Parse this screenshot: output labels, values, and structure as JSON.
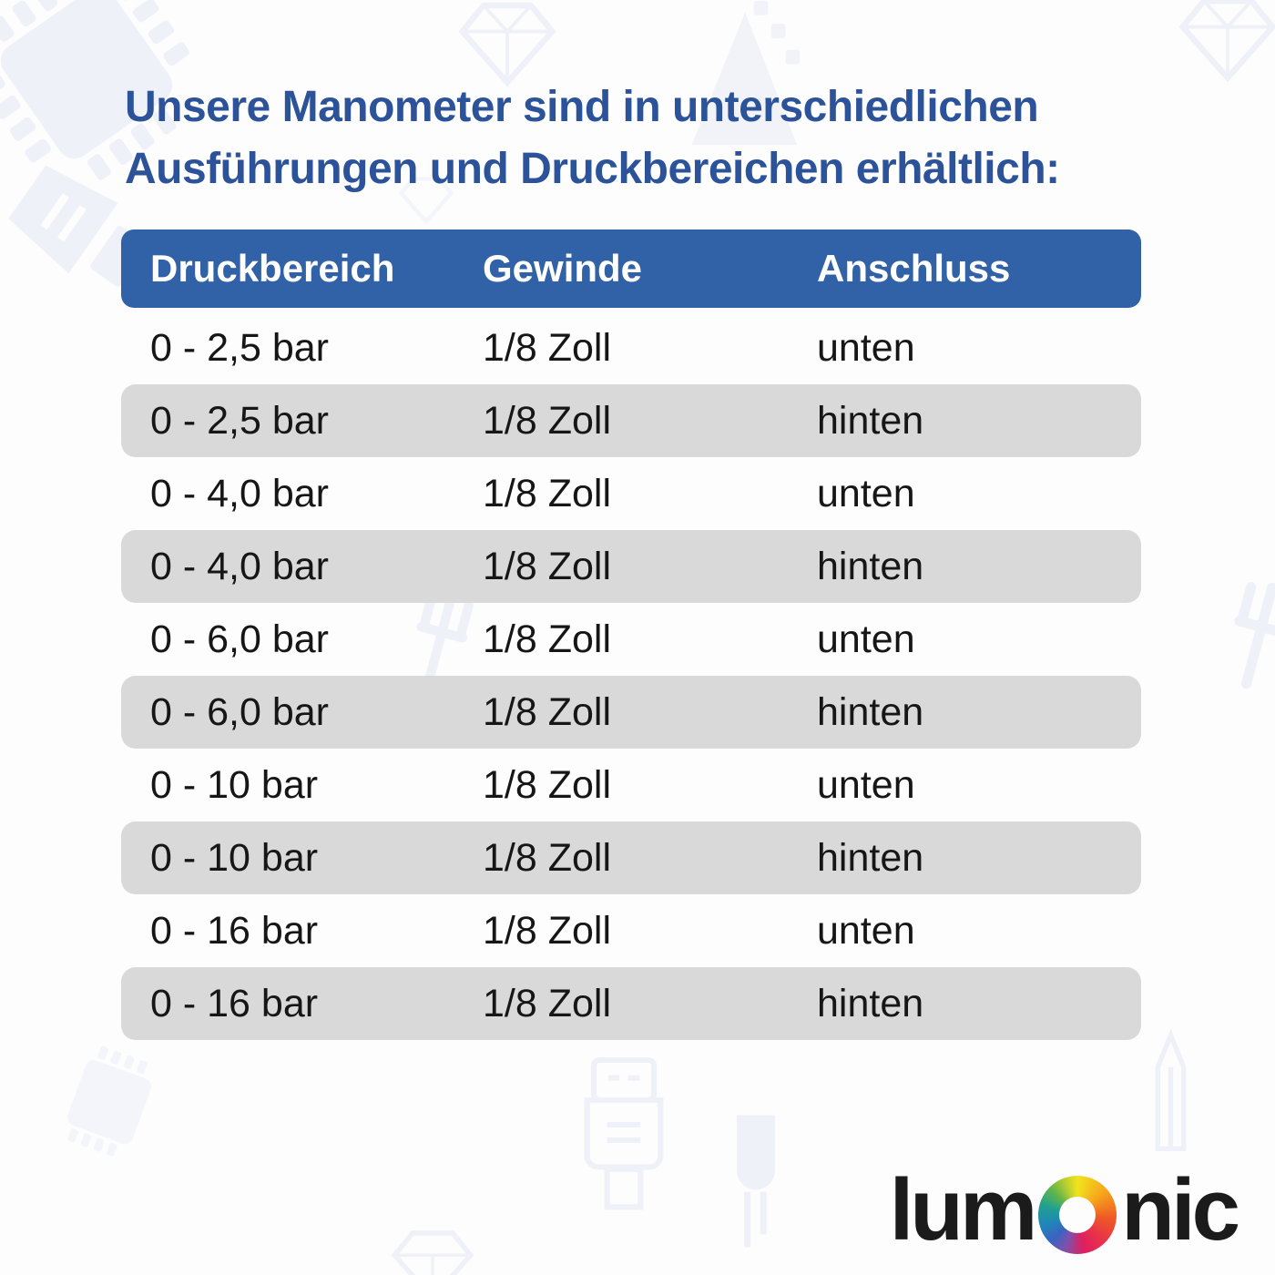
{
  "title": {
    "lines": [
      "Unsere Manometer sind in unterschiedlichen",
      "Ausführungen und Druckbereichen erhältlich:"
    ],
    "color": "#2c5399"
  },
  "table": {
    "headers": [
      "Druckbereich",
      "Gewinde",
      "Anschluss"
    ],
    "rows": [
      [
        "0 - 2,5 bar",
        "1/8 Zoll",
        "unten"
      ],
      [
        "0 - 2,5 bar",
        "1/8 Zoll",
        "hinten"
      ],
      [
        "0 - 4,0 bar",
        "1/8 Zoll",
        "unten"
      ],
      [
        "0 - 4,0 bar",
        "1/8 Zoll",
        "hinten"
      ],
      [
        "0 - 6,0 bar",
        "1/8 Zoll",
        "unten"
      ],
      [
        "0 - 6,0 bar",
        "1/8 Zoll",
        "hinten"
      ],
      [
        "0 - 10 bar",
        "1/8 Zoll",
        "unten"
      ],
      [
        "0 - 10 bar",
        "1/8 Zoll",
        "hinten"
      ],
      [
        "0 - 16 bar",
        "1/8 Zoll",
        "unten"
      ],
      [
        "0 - 16 bar",
        "1/8 Zoll",
        "hinten"
      ]
    ],
    "header_bg": "#3161a6",
    "header_text_color": "#ffffff",
    "alt_row_bg": "#d9d9d9"
  },
  "logo": {
    "text_left": "lum",
    "text_right": "nic",
    "ring_colors": [
      "#f1e31d",
      "#f6a41c",
      "#ef5a24",
      "#e93348",
      "#dd1f61",
      "#3a63c1",
      "#1f87b8",
      "#21a08f",
      "#62b549"
    ]
  },
  "background": {
    "icon_names": [
      "chip-icon",
      "gem-icon",
      "mountain-icon",
      "usb-connector-icon",
      "wrench-icon",
      "hdmi-plug-icon",
      "led-icon",
      "pin-icon"
    ]
  }
}
